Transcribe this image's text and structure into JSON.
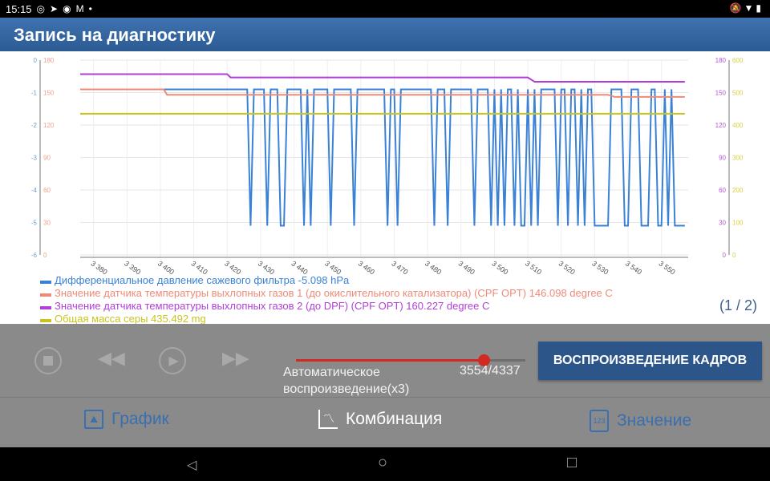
{
  "status_bar": {
    "time": "15:15",
    "icons": [
      "whatsapp-icon",
      "telegram-icon",
      "messenger-icon",
      "gmail-icon",
      "dot-icon"
    ],
    "right_icons": [
      "mute-icon",
      "wifi-icon",
      "battery-icon"
    ]
  },
  "title": "Запись на диагностику",
  "legend": [
    {
      "label": "Дифференциальное давление сажевого фильтра -5.098 hPa",
      "color": "#3b82d6"
    },
    {
      "label": "Значение датчика температуры выхлопных газов 1 (до окислительного катализатора) (CPF OPT) 146.098 degree C",
      "color": "#f08a78"
    },
    {
      "label": "Значение датчика температуры выхлопных газов 2 (до DPF) (CPF OPT) 160.227 degree C",
      "color": "#b13ed8"
    },
    {
      "label": "Общая масса серы 435.492 mg",
      "color": "#c9c41c"
    }
  ],
  "pager": "(1 / 2)",
  "controls": {
    "stop": "stop-icon",
    "rewind": "rewind-icon",
    "play": "play-icon",
    "forward": "fast-forward-icon",
    "auto_label": "Автоматическое воспроизведение(x3)",
    "frames": "3554/4337",
    "progress": 0.8195,
    "play_frames_button": "ВОСПРОИЗВЕДЕНИЕ КАДРОВ"
  },
  "tabs": [
    {
      "label": "График",
      "icon": "image-icon",
      "color": "#3a6fb0"
    },
    {
      "label": "Комбинация",
      "icon": "line-chart-icon",
      "color": "#ffffff"
    },
    {
      "label": "Значение",
      "icon": "number-file-icon",
      "color": "#3a6fb0"
    }
  ],
  "nav": {
    "back": "◁",
    "home": "○",
    "recent": "□"
  },
  "chart_data": {
    "type": "line",
    "xlim": [
      3376,
      3558
    ],
    "x_ticks": [
      "3 380",
      "3 390",
      "3 400",
      "3 410",
      "3 420",
      "3 430",
      "3 440",
      "3 450",
      "3 460",
      "3 470",
      "3 480",
      "3 490",
      "3 500",
      "3 510",
      "3 520",
      "3 530",
      "3 540",
      "3 550"
    ],
    "x_tick_values": [
      3380,
      3390,
      3400,
      3410,
      3420,
      3430,
      3440,
      3450,
      3460,
      3470,
      3480,
      3490,
      3500,
      3510,
      3520,
      3530,
      3540,
      3550
    ],
    "grid": true,
    "axes": [
      {
        "side": "left",
        "color": "#6a9fd8",
        "range": [
          -6,
          0
        ],
        "ticks": [
          "0",
          "-1",
          "-2",
          "-3",
          "-4",
          "-5",
          "-6"
        ]
      },
      {
        "side": "left",
        "color": "#f0a090",
        "range": [
          0,
          180
        ],
        "ticks": [
          "180",
          "150",
          "120",
          "90",
          "60",
          "30",
          "0"
        ]
      },
      {
        "side": "right",
        "color": "#b25ad8",
        "range": [
          0,
          180
        ],
        "ticks": [
          "180",
          "150",
          "120",
          "90",
          "60",
          "30",
          "0"
        ]
      },
      {
        "side": "right",
        "color": "#d8d040",
        "range": [
          0,
          600
        ],
        "ticks": [
          "600",
          "500",
          "400",
          "300",
          "200",
          "100",
          "0"
        ]
      }
    ],
    "series": [
      {
        "name": "Дифференциальное давление сажевого фильтра",
        "axis": 0,
        "color": "#3b82d6",
        "x_start": 3376,
        "x_step": 1,
        "y": [
          -0.9,
          -0.9,
          -0.9,
          -0.9,
          -0.9,
          -0.9,
          -0.9,
          -0.9,
          -0.9,
          -0.9,
          -0.9,
          -0.9,
          -0.9,
          -0.9,
          -0.9,
          -0.9,
          -0.9,
          -0.9,
          -0.9,
          -0.9,
          -0.9,
          -0.9,
          -0.9,
          -0.9,
          -0.9,
          -0.9,
          -0.9,
          -0.9,
          -0.9,
          -0.9,
          -0.9,
          -0.9,
          -0.9,
          -0.9,
          -0.9,
          -0.9,
          -0.9,
          -0.9,
          -0.9,
          -0.9,
          -0.9,
          -0.9,
          -0.9,
          -0.9,
          -0.9,
          -0.9,
          -0.9,
          -0.9,
          -0.9,
          -0.9,
          -0.9,
          -5.1,
          -0.9,
          -0.9,
          -0.9,
          -0.9,
          -5.1,
          -0.9,
          -0.9,
          -0.9,
          -5.1,
          -5.1,
          -0.9,
          -0.9,
          -0.9,
          -0.9,
          -0.9,
          -5.1,
          -0.9,
          -5.1,
          -0.9,
          -0.9,
          -0.9,
          -0.9,
          -0.9,
          -5.1,
          -0.9,
          -0.9,
          -0.9,
          -0.9,
          -0.9,
          -0.9,
          -5.1,
          -0.9,
          -0.9,
          -0.9,
          -0.9,
          -0.9,
          -0.9,
          -0.9,
          -0.9,
          -0.9,
          -5.1,
          -0.9,
          -0.9,
          -5.1,
          -0.9,
          -0.9,
          -0.9,
          -0.9,
          -0.9,
          -0.9,
          -0.9,
          -0.9,
          -0.9,
          -0.9,
          -5.1,
          -0.9,
          -0.9,
          -0.9,
          -5.1,
          -0.9,
          -0.9,
          -0.9,
          -0.9,
          -0.9,
          -0.9,
          -0.9,
          -5.1,
          -0.9,
          -0.9,
          -0.9,
          -0.9,
          -5.1,
          -0.9,
          -5.1,
          -0.9,
          -5.1,
          -0.9,
          -0.9,
          -5.1,
          -0.9,
          -5.1,
          -5.1,
          -0.9,
          -5.1,
          -0.9,
          -5.1,
          -0.9,
          -0.9,
          -0.9,
          -0.9,
          -0.9,
          -5.1,
          -0.9,
          -0.9,
          -5.1,
          -0.9,
          -0.9,
          -5.1,
          -0.9,
          -5.1,
          -0.9,
          -0.9,
          -5.1,
          -5.1,
          -5.1,
          -5.1,
          -5.1,
          -0.9,
          -0.9,
          -0.9,
          -0.9,
          -5.1,
          -5.1,
          -0.9,
          -0.9,
          -0.9,
          -5.1,
          -5.1,
          -5.1,
          -0.9,
          -0.9,
          -5.1,
          -5.1,
          -0.9,
          -5.1,
          -0.9,
          -5.1,
          -5.1,
          -5.1,
          -5.1
        ]
      },
      {
        "name": "Значение датчика температуры выхлопных газов 1",
        "axis": 1,
        "color": "#f08a78",
        "x": [
          3376,
          3401,
          3402,
          3534,
          3536,
          3557
        ],
        "y": [
          153,
          153,
          148,
          148,
          146,
          146
        ]
      },
      {
        "name": "Значение датчика температуры выхлопных газов 2",
        "axis": 2,
        "color": "#b13ed8",
        "x": [
          3376,
          3420,
          3421,
          3510,
          3512,
          3557
        ],
        "y": [
          167,
          167,
          164,
          164,
          160,
          160
        ]
      },
      {
        "name": "Общая масса серы",
        "axis": 3,
        "color": "#c9c41c",
        "x": [
          3376,
          3557
        ],
        "y": [
          435,
          435
        ]
      }
    ]
  }
}
